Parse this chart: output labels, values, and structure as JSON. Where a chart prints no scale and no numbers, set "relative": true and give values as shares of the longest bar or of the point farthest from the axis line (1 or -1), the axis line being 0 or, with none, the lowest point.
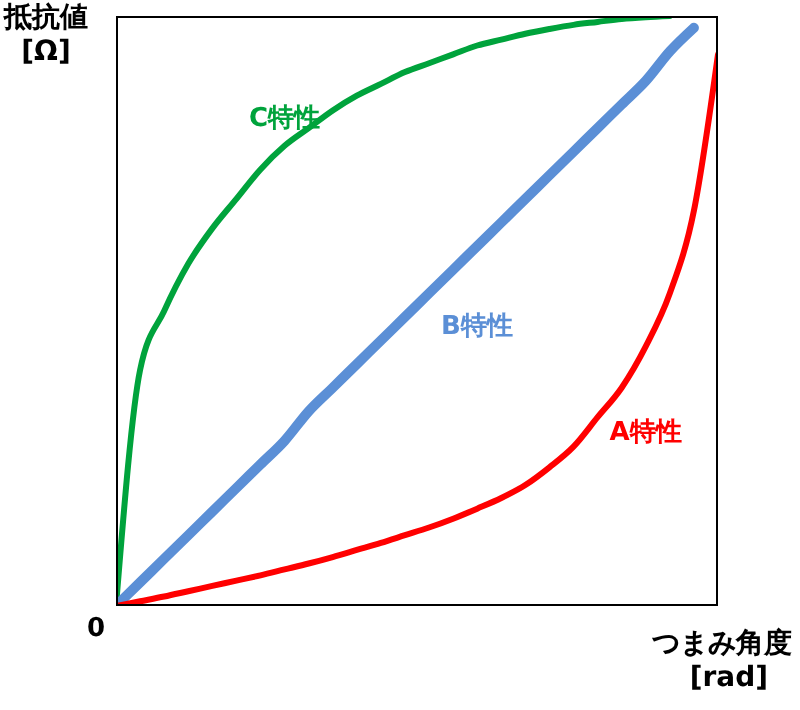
{
  "chart_data": {
    "type": "line",
    "relative": true,
    "marker": "none",
    "xlabel": "つまみ角度\n[rad]",
    "ylabel": "抵抗値\n[Ω]",
    "annotations": [
      "0"
    ],
    "categories": [
      null,
      null,
      null,
      null,
      null,
      null,
      null,
      null,
      null,
      null,
      null,
      null,
      null,
      null,
      null,
      null,
      null,
      null,
      null,
      null,
      null,
      null,
      null,
      null,
      null,
      null
    ],
    "series": [
      {
        "name": "C特性",
        "color": "#00a33c",
        "values": [
          0,
          0.4,
          0.5,
          0.58,
          0.64,
          0.69,
          0.74,
          0.78,
          0.81,
          0.84,
          0.865,
          0.885,
          0.905,
          0.92,
          0.935,
          0.95,
          0.96,
          0.97,
          0.978,
          0.985,
          0.99,
          0.995,
          0.998,
          1.0,
          null,
          null
        ]
      },
      {
        "name": "B特性",
        "color": "#5b8fd6",
        "values": [
          0,
          0.04,
          0.08,
          0.12,
          0.16,
          0.2,
          0.24,
          0.28,
          0.33,
          0.37,
          0.41,
          0.45,
          0.49,
          0.53,
          0.57,
          0.61,
          0.65,
          0.69,
          0.73,
          0.77,
          0.81,
          0.85,
          0.89,
          0.94,
          0.98,
          null
        ]
      },
      {
        "name": "A特性",
        "color": "#ff0000",
        "values": [
          0,
          0.008,
          0.016,
          0.025,
          0.034,
          0.043,
          0.052,
          0.062,
          0.072,
          0.083,
          0.095,
          0.107,
          0.12,
          0.133,
          0.148,
          0.165,
          0.183,
          0.205,
          0.235,
          0.27,
          0.32,
          0.37,
          0.44,
          0.53,
          0.67,
          0.935
        ]
      }
    ]
  }
}
